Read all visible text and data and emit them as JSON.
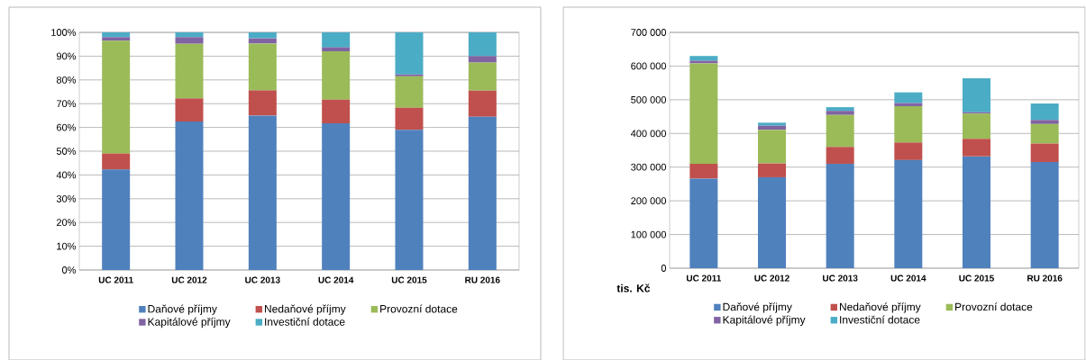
{
  "chart_data": [
    {
      "type": "bar",
      "stacked": true,
      "categories": [
        "UC 2011",
        "UC 2012",
        "UC 2013",
        "UC 2014",
        "UC 2015",
        "RU 2016"
      ],
      "series": [
        {
          "name": "Daňové příjmy",
          "color": "#4f81bd",
          "values": [
            42.3,
            62.5,
            65,
            61.7,
            59,
            64.5
          ]
        },
        {
          "name": "Nedaňové příjmy",
          "color": "#c0504d",
          "values": [
            6.7,
            9.7,
            10.6,
            10,
            9.3,
            11
          ]
        },
        {
          "name": "Provozní dotace",
          "color": "#9bbb59",
          "values": [
            47.5,
            23,
            19.7,
            20.3,
            13.2,
            11.8
          ]
        },
        {
          "name": "Kapitálové příjmy",
          "color": "#8064a2",
          "values": [
            1.5,
            2.8,
            2.2,
            1.7,
            0.8,
            2.7
          ]
        },
        {
          "name": "Investiční dotace",
          "color": "#4bacc6",
          "values": [
            2,
            2,
            2.5,
            6.3,
            17.7,
            10
          ]
        }
      ],
      "ylim": [
        0,
        100
      ],
      "yticks": [
        {
          "value": 0,
          "label": "0%"
        },
        {
          "value": 10,
          "label": "10%"
        },
        {
          "value": 20,
          "label": "20%"
        },
        {
          "value": 30,
          "label": "30%"
        },
        {
          "value": 40,
          "label": "40%"
        },
        {
          "value": 50,
          "label": "50%"
        },
        {
          "value": 60,
          "label": "60%"
        },
        {
          "value": 70,
          "label": "70%"
        },
        {
          "value": 80,
          "label": "80%"
        },
        {
          "value": 90,
          "label": "90%"
        },
        {
          "value": 100,
          "label": "100%"
        }
      ],
      "grid": "y",
      "legend": "bottom"
    },
    {
      "type": "bar",
      "stacked": true,
      "categories": [
        "UC 2011",
        "UC 2012",
        "UC 2013",
        "UC 2014",
        "UC 2015",
        "RU 2016"
      ],
      "ylabel": "tis. Kč",
      "series": [
        {
          "name": "Daňové příjmy",
          "color": "#4f81bd",
          "values": [
            266000,
            270000,
            310000,
            321000,
            332000,
            315000
          ]
        },
        {
          "name": "Nedaňové příjmy",
          "color": "#c0504d",
          "values": [
            44000,
            41000,
            50000,
            52000,
            52000,
            55000
          ]
        },
        {
          "name": "Provozní dotace",
          "color": "#9bbb59",
          "values": [
            298000,
            100000,
            95000,
            108000,
            75000,
            58000
          ]
        },
        {
          "name": "Kapitálové příjmy",
          "color": "#8064a2",
          "values": [
            8000,
            12000,
            12000,
            9000,
            4000,
            12000
          ]
        },
        {
          "name": "Investiční dotace",
          "color": "#4bacc6",
          "values": [
            14000,
            9000,
            11000,
            32000,
            101000,
            49000
          ]
        }
      ],
      "ylim": [
        0,
        700000
      ],
      "yticks": [
        0,
        {
          "value": 100000,
          "label": "100 000"
        },
        {
          "value": 200000,
          "label": "200 000"
        },
        {
          "value": 300000,
          "label": "300 000"
        },
        {
          "value": 400000,
          "label": "400 000"
        },
        {
          "value": 500000,
          "label": "500 000"
        },
        {
          "value": 600000,
          "label": "600 000"
        },
        {
          "value": 700000,
          "label": "700 000"
        }
      ],
      "grid": "y",
      "legend": "bottom"
    }
  ]
}
